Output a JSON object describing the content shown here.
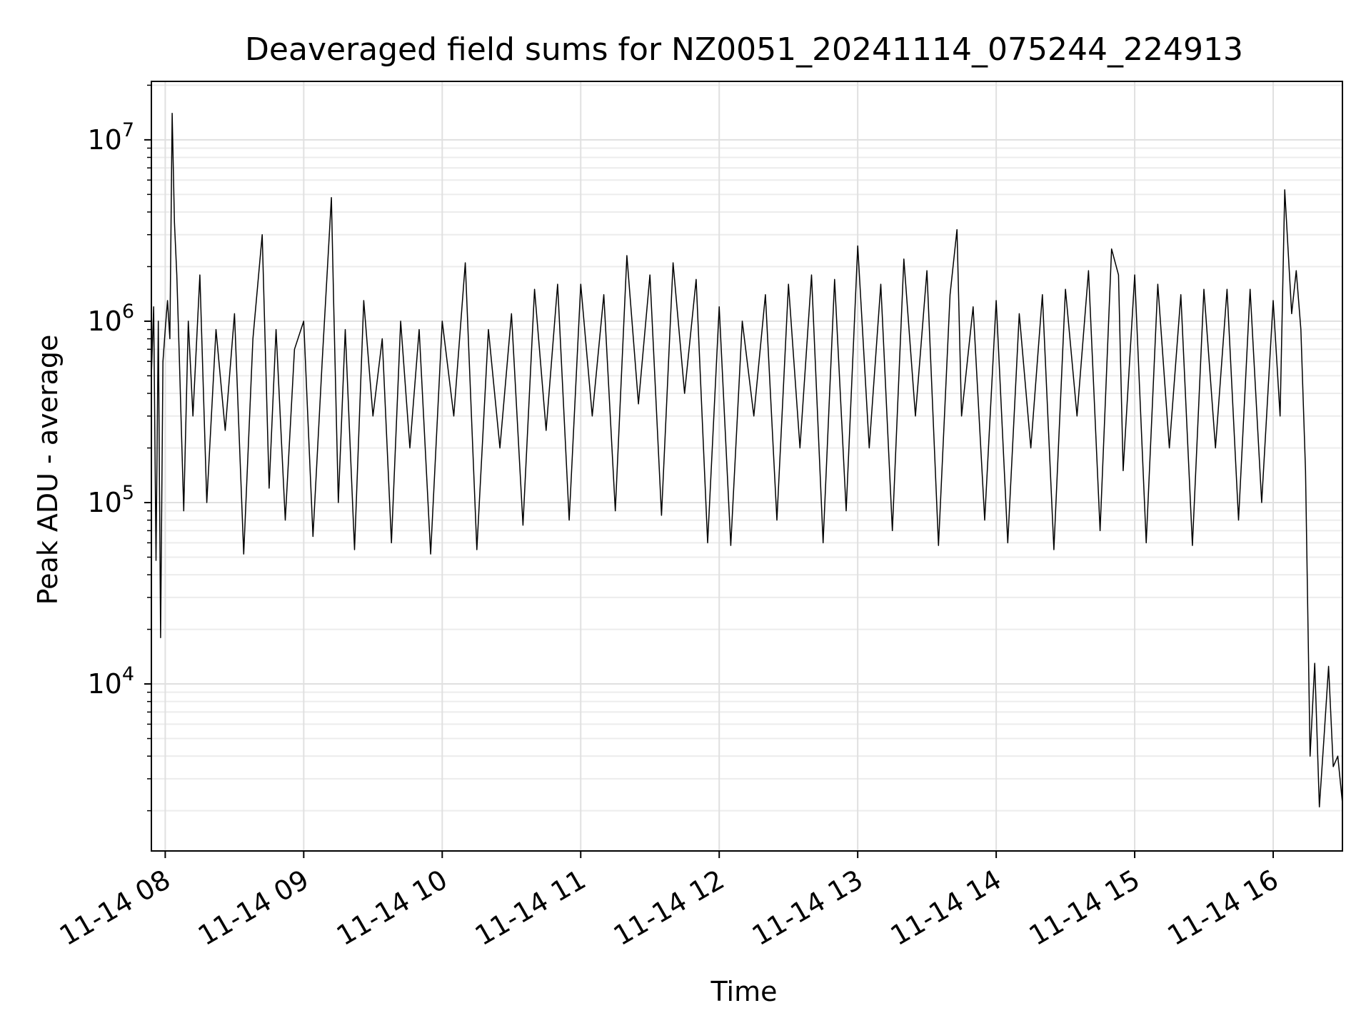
{
  "chart_data": {
    "type": "line",
    "title": "Deaveraged field sums for NZ0051_20241114_075244_224913",
    "xlabel": "Time",
    "ylabel": "Peak ADU - average",
    "yscale": "log",
    "ylim": [
      1200,
      21000000
    ],
    "xlim": [
      "11-14 07:54",
      "11-14 16:30"
    ],
    "grid": true,
    "x_ticks": [
      "11-14 08",
      "11-14 09",
      "11-14 10",
      "11-14 11",
      "11-14 12",
      "11-14 13",
      "11-14 14",
      "11-14 15",
      "11-14 16"
    ],
    "y_ticks": [
      {
        "base": "10",
        "exp": "4",
        "value": 10000
      },
      {
        "base": "10",
        "exp": "5",
        "value": 100000
      },
      {
        "base": "10",
        "exp": "6",
        "value": 1000000
      },
      {
        "base": "10",
        "exp": "7",
        "value": 10000000
      }
    ],
    "line_color": "#000000",
    "series": [
      {
        "x": [
          "11-14 07:54",
          "11-14 07:55",
          "11-14 07:56",
          "11-14 07:57",
          "11-14 07:58",
          "11-14 07:59",
          "11-14 08:00",
          "11-14 08:01",
          "11-14 08:02",
          "11-14 08:03",
          "11-14 08:04",
          "11-14 08:05",
          "11-14 08:06",
          "11-14 08:08",
          "11-14 08:10",
          "11-14 08:12",
          "11-14 08:15",
          "11-14 08:18",
          "11-14 08:22",
          "11-14 08:26",
          "11-14 08:30",
          "11-14 08:34",
          "11-14 08:38",
          "11-14 08:42",
          "11-14 08:45",
          "11-14 08:48",
          "11-14 08:52",
          "11-14 08:56",
          "11-14 09:00",
          "11-14 09:04",
          "11-14 09:08",
          "11-14 09:12",
          "11-14 09:13",
          "11-14 09:15",
          "11-14 09:18",
          "11-14 09:22",
          "11-14 09:26",
          "11-14 09:30",
          "11-14 09:34",
          "11-14 09:38",
          "11-14 09:42",
          "11-14 09:46",
          "11-14 09:50",
          "11-14 09:55",
          "11-14 10:00",
          "11-14 10:05",
          "11-14 10:10",
          "11-14 10:15",
          "11-14 10:20",
          "11-14 10:25",
          "11-14 10:30",
          "11-14 10:35",
          "11-14 10:40",
          "11-14 10:45",
          "11-14 10:50",
          "11-14 10:55",
          "11-14 11:00",
          "11-14 11:05",
          "11-14 11:10",
          "11-14 11:15",
          "11-14 11:20",
          "11-14 11:25",
          "11-14 11:30",
          "11-14 11:35",
          "11-14 11:40",
          "11-14 11:45",
          "11-14 11:50",
          "11-14 11:55",
          "11-14 12:00",
          "11-14 12:05",
          "11-14 12:10",
          "11-14 12:15",
          "11-14 12:20",
          "11-14 12:25",
          "11-14 12:30",
          "11-14 12:35",
          "11-14 12:40",
          "11-14 12:45",
          "11-14 12:50",
          "11-14 12:55",
          "11-14 13:00",
          "11-14 13:05",
          "11-14 13:10",
          "11-14 13:15",
          "11-14 13:20",
          "11-14 13:25",
          "11-14 13:30",
          "11-14 13:35",
          "11-14 13:40",
          "11-14 13:43",
          "11-14 13:45",
          "11-14 13:50",
          "11-14 13:55",
          "11-14 14:00",
          "11-14 14:05",
          "11-14 14:10",
          "11-14 14:15",
          "11-14 14:20",
          "11-14 14:25",
          "11-14 14:30",
          "11-14 14:35",
          "11-14 14:40",
          "11-14 14:45",
          "11-14 14:50",
          "11-14 14:53",
          "11-14 14:55",
          "11-14 15:00",
          "11-14 15:05",
          "11-14 15:10",
          "11-14 15:15",
          "11-14 15:20",
          "11-14 15:25",
          "11-14 15:30",
          "11-14 15:35",
          "11-14 15:40",
          "11-14 15:45",
          "11-14 15:50",
          "11-14 15:55",
          "11-14 16:00",
          "11-14 16:03",
          "11-14 16:05",
          "11-14 16:08",
          "11-14 16:10",
          "11-14 16:12",
          "11-14 16:14",
          "11-14 16:16",
          "11-14 16:18",
          "11-14 16:20",
          "11-14 16:22",
          "11-14 16:24",
          "11-14 16:26",
          "11-14 16:28",
          "11-14 16:30"
        ],
        "y": [
          500000,
          1200000,
          48000,
          1000000,
          18000,
          600000,
          900000,
          1300000,
          800000,
          14000000,
          3500000,
          1800000,
          700000,
          90000,
          1000000,
          300000,
          1800000,
          100000,
          900000,
          250000,
          1100000,
          52000,
          800000,
          3000000,
          120000,
          900000,
          80000,
          700000,
          1000000,
          65000,
          600000,
          4800000,
          1200000,
          100000,
          900000,
          55000,
          1300000,
          300000,
          800000,
          60000,
          1000000,
          200000,
          900000,
          52000,
          1000000,
          300000,
          2100000,
          55000,
          900000,
          200000,
          1100000,
          75000,
          1500000,
          250000,
          1600000,
          80000,
          1600000,
          300000,
          1400000,
          90000,
          2300000,
          350000,
          1800000,
          85000,
          2100000,
          400000,
          1700000,
          60000,
          1200000,
          58000,
          1000000,
          300000,
          1400000,
          80000,
          1600000,
          200000,
          1800000,
          60000,
          1700000,
          90000,
          2600000,
          200000,
          1600000,
          70000,
          2200000,
          300000,
          1900000,
          58000,
          1400000,
          3200000,
          300000,
          1200000,
          80000,
          1300000,
          60000,
          1100000,
          200000,
          1400000,
          55000,
          1500000,
          300000,
          1900000,
          70000,
          2500000,
          1800000,
          150000,
          1800000,
          60000,
          1600000,
          200000,
          1400000,
          58000,
          1500000,
          200000,
          1500000,
          80000,
          1500000,
          100000,
          1300000,
          300000,
          5300000,
          1100000,
          1900000,
          900000,
          150000,
          4000,
          13000,
          2100,
          5000,
          12500,
          3500,
          4000,
          2200
        ],
        "name": ""
      }
    ]
  }
}
